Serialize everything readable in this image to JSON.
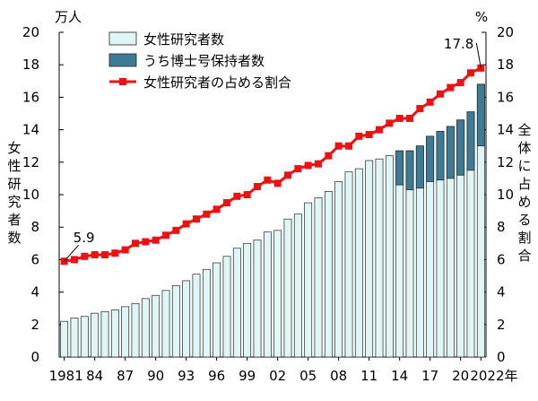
{
  "chart_data": {
    "type": "bar",
    "left_unit": "万人",
    "right_unit": "%",
    "left_axis_label": "女性研究者数",
    "right_axis_label": "全体に占める割合",
    "years": [
      1981,
      1982,
      1983,
      1984,
      1985,
      1986,
      1987,
      1988,
      1989,
      1990,
      1991,
      1992,
      1993,
      1994,
      1995,
      1996,
      1997,
      1998,
      1999,
      2000,
      2001,
      2002,
      2003,
      2004,
      2005,
      2006,
      2007,
      2008,
      2009,
      2010,
      2011,
      2012,
      2013,
      2014,
      2015,
      2016,
      2017,
      2018,
      2019,
      2020,
      2021,
      2022
    ],
    "x_tick_labels": [
      "1981",
      "84",
      "87",
      "90",
      "93",
      "96",
      "99",
      "02",
      "05",
      "08",
      "11",
      "14",
      "17",
      "20",
      "2022年"
    ],
    "x_tick_years": [
      1981,
      1984,
      1987,
      1990,
      1993,
      1996,
      1999,
      2002,
      2005,
      2008,
      2011,
      2014,
      2017,
      2020,
      2022
    ],
    "ylim_left": [
      0,
      20
    ],
    "ylim_right": [
      0,
      20
    ],
    "y_ticks": [
      0,
      2,
      4,
      6,
      8,
      10,
      12,
      14,
      16,
      18,
      20
    ],
    "series": [
      {
        "name": "女性研究者数",
        "kind": "bar",
        "color": "#dff6f6",
        "values": [
          2.2,
          2.4,
          2.5,
          2.7,
          2.8,
          2.9,
          3.1,
          3.3,
          3.6,
          3.8,
          4.1,
          4.4,
          4.7,
          5.1,
          5.4,
          5.8,
          6.2,
          6.7,
          7.0,
          7.2,
          7.7,
          7.8,
          8.5,
          8.8,
          9.5,
          9.8,
          10.2,
          10.8,
          11.4,
          11.6,
          12.1,
          12.2,
          12.4,
          12.7,
          12.7,
          13.0,
          13.6,
          13.9,
          14.2,
          14.6,
          15.1,
          16.8
        ]
      },
      {
        "name": "うち博士号保持者数",
        "kind": "bar-overlay",
        "color": "#3d7a95",
        "start_index": 33,
        "values": [
          2.1,
          2.4,
          2.6,
          2.8,
          3.0,
          3.2,
          3.4,
          3.6,
          3.8
        ]
      },
      {
        "name": "女性研究者の占める割合",
        "kind": "line",
        "color": "#ee1111",
        "values": [
          5.9,
          6.0,
          6.2,
          6.3,
          6.3,
          6.4,
          6.6,
          7.0,
          7.1,
          7.2,
          7.5,
          7.8,
          8.2,
          8.5,
          8.8,
          9.1,
          9.5,
          9.9,
          10.0,
          10.5,
          10.9,
          10.7,
          11.2,
          11.6,
          11.8,
          11.9,
          12.4,
          13.0,
          13.0,
          13.6,
          13.7,
          14.0,
          14.4,
          14.7,
          14.7,
          15.3,
          15.7,
          16.2,
          16.6,
          16.9,
          17.5,
          17.8
        ]
      }
    ],
    "annotations": [
      {
        "text": "5.9",
        "year": 1981
      },
      {
        "text": "17.8",
        "year": 2022
      }
    ]
  }
}
